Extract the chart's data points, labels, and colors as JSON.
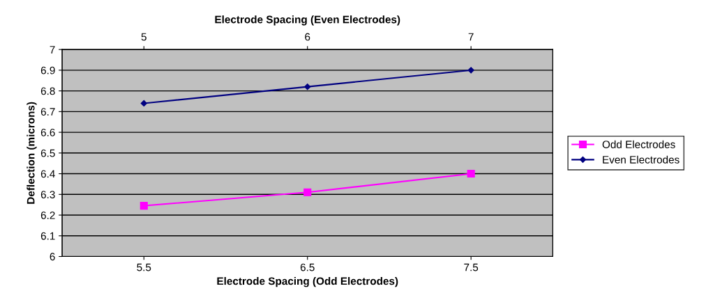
{
  "chart_data": {
    "type": "line",
    "xlabel": "Electrode Spacing (Odd Electrodes)",
    "ylabel": "Deflection (microns)",
    "x2label": "Electrode Spacing (Even Electrodes)",
    "xlim": [
      5,
      8
    ],
    "xticks": [
      5.5,
      6.5,
      7.5
    ],
    "x2lim": [
      4.5,
      7.5
    ],
    "x2ticks": [
      5,
      6,
      7
    ],
    "ylim": [
      6,
      7
    ],
    "yticks": [
      6,
      6.1,
      6.2,
      6.3,
      6.4,
      6.5,
      6.6,
      6.7,
      6.8,
      6.9,
      7
    ],
    "grid": "y",
    "legend": "right",
    "series": [
      {
        "name": "Odd Electrodes",
        "color": "#ff00ff",
        "marker": "square",
        "x": [
          5.5,
          6.5,
          7.5
        ],
        "values": [
          6.245,
          6.31,
          6.4
        ]
      },
      {
        "name": "Even Electrodes",
        "color": "#000080",
        "marker": "diamond",
        "axis": "x2",
        "x": [
          5,
          6,
          7
        ],
        "values": [
          6.74,
          6.82,
          6.9
        ]
      }
    ]
  }
}
